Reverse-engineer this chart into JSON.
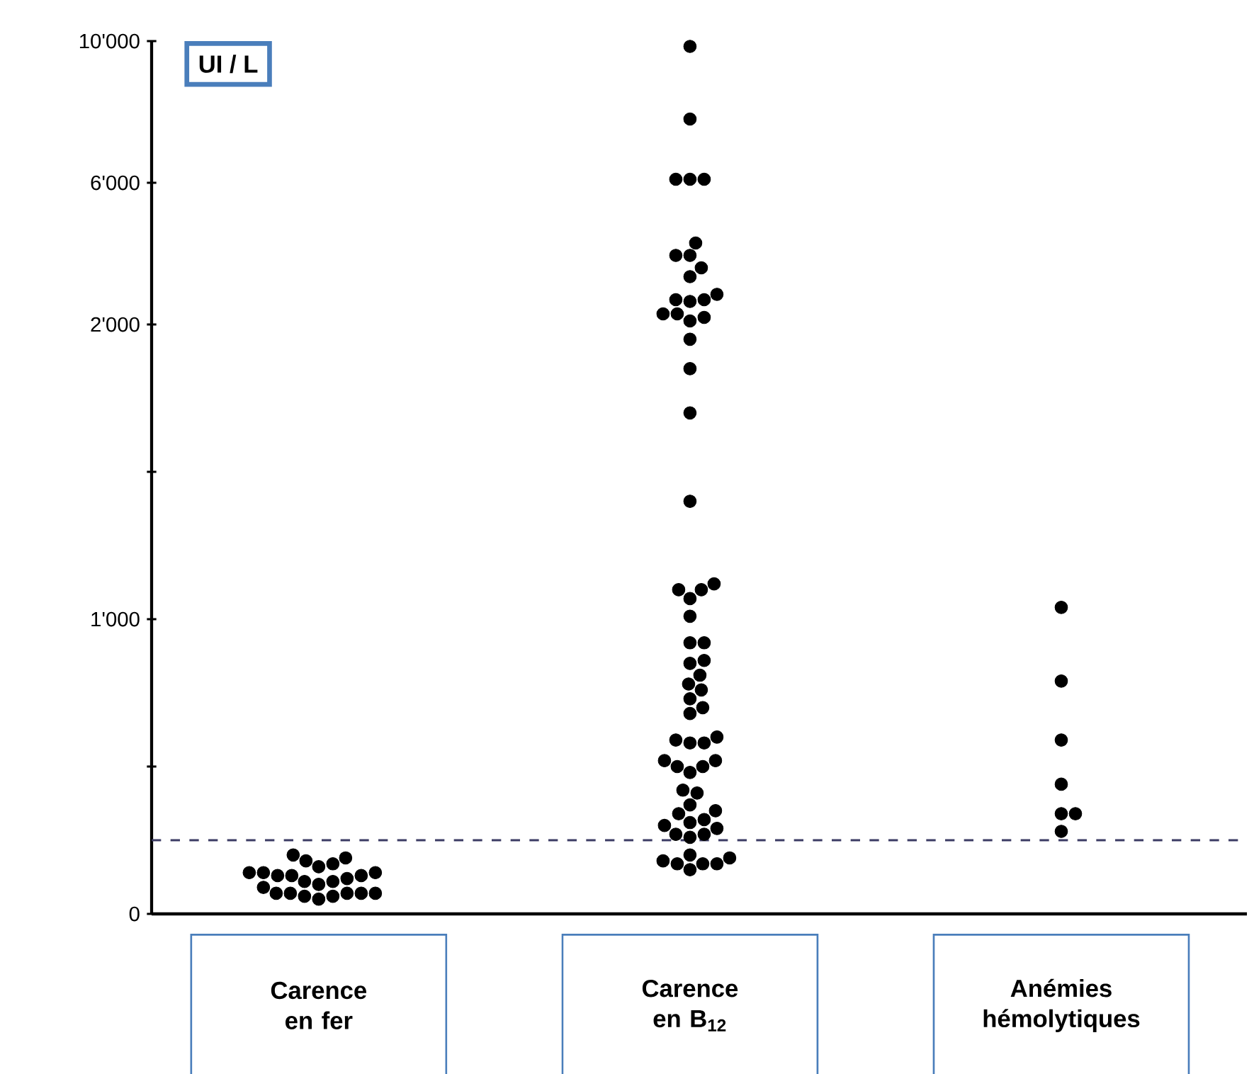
{
  "chart_data": [
    {
      "type": "scatter",
      "ylabel": "UI / L",
      "categories": [
        "Carence en fer",
        "Carence en B$_{12}$",
        "Anémies hémolytiques"
      ],
      "ylim": [
        2000,
        10000
      ],
      "yticks": [
        {
          "value": 6000,
          "label": "6'000"
        },
        {
          "value": 10000,
          "label": "10'000"
        }
      ],
      "tick_labels": "y",
      "marker": "circle",
      "series": [
        {
          "color": "#000000",
          "x": [
            "Carence en B$_{12}$",
            "Carence en B$_{12}$",
            "Carence en B$_{12}$",
            "Carence en B$_{12}$",
            "Carence en B$_{12}$",
            "Carence en B$_{12}$",
            "Carence en B$_{12}$",
            "Carence en B$_{12}$",
            "Carence en B$_{12}$",
            "Carence en B$_{12}$",
            "Carence en B$_{12}$",
            "Carence en B$_{12}$",
            "Carence en B$_{12}$",
            "Carence en B$_{12}$",
            "Carence en B$_{12}$",
            "Carence en B$_{12}$",
            "Carence en B$_{12}$",
            "Carence en B$_{12}$"
          ],
          "values": [
            9850,
            7800,
            6100,
            6100,
            6100,
            4300,
            3950,
            3950,
            3600,
            3350,
            2700,
            2700,
            2650,
            2850,
            2300,
            2200,
            2100,
            2300
          ]
        }
      ]
    },
    {
      "type": "scatter",
      "categories": [
        "Carence en fer",
        "Carence en B$_{12}$",
        "Anémies hémolytiques"
      ],
      "ylim": [
        0,
        2000
      ],
      "yticks": [
        0,
        {
          "value": 500,
          "label": null
        },
        {
          "value": 1000,
          "label": "1'000"
        },
        {
          "value": 1500,
          "label": null
        },
        {
          "value": 2000,
          "label": "2'000"
        }
      ],
      "marker": "circle",
      "ref_lines": [
        {
          "axis": "y",
          "value": 250,
          "color": "#3c3c64",
          "line_style": "dashed"
        }
      ],
      "series": [
        {
          "color": "#000000",
          "x": [
            "Carence en fer",
            "Carence en fer",
            "Carence en fer",
            "Carence en fer",
            "Carence en fer",
            "Carence en fer",
            "Carence en fer",
            "Carence en fer",
            "Carence en fer",
            "Carence en fer",
            "Carence en fer",
            "Carence en fer",
            "Carence en fer",
            "Carence en fer",
            "Carence en fer",
            "Carence en fer",
            "Carence en fer",
            "Carence en fer",
            "Carence en fer",
            "Carence en fer",
            "Carence en fer",
            "Carence en fer",
            "Carence en fer",
            "Carence en fer",
            "Carence en B$_{12}$",
            "Carence en B$_{12}$",
            "Carence en B$_{12}$",
            "Carence en B$_{12}$",
            "Carence en B$_{12}$",
            "Carence en B$_{12}$",
            "Carence en B$_{12}$",
            "Carence en B$_{12}$",
            "Carence en B$_{12}$",
            "Carence en B$_{12}$",
            "Carence en B$_{12}$",
            "Carence en B$_{12}$",
            "Carence en B$_{12}$",
            "Carence en B$_{12}$",
            "Carence en B$_{12}$",
            "Carence en B$_{12}$",
            "Carence en B$_{12}$",
            "Carence en B$_{12}$",
            "Carence en B$_{12}$",
            "Carence en B$_{12}$",
            "Carence en B$_{12}$",
            "Carence en B$_{12}$",
            "Carence en B$_{12}$",
            "Carence en B$_{12}$",
            "Carence en B$_{12}$",
            "Carence en B$_{12}$",
            "Carence en B$_{12}$",
            "Carence en B$_{12}$",
            "Carence en B$_{12}$",
            "Carence en B$_{12}$",
            "Carence en B$_{12}$",
            "Carence en B$_{12}$",
            "Carence en B$_{12}$",
            "Carence en B$_{12}$",
            "Carence en B$_{12}$",
            "Carence en B$_{12}$",
            "Carence en B$_{12}$",
            "Carence en B$_{12}$",
            "Carence en B$_{12}$",
            "Carence en B$_{12}$",
            "Carence en B$_{12}$",
            "Carence en B$_{12}$",
            "Carence en B$_{12}$",
            "Carence en B$_{12}$",
            "Carence en B$_{12}$",
            "Carence en B$_{12}$",
            "Carence en B$_{12}$",
            "Anémies hémolytiques",
            "Anémies hémolytiques",
            "Anémies hémolytiques",
            "Anémies hémolytiques",
            "Anémies hémolytiques",
            "Anémies hémolytiques",
            "Anémies hémolytiques"
          ],
          "values": [
            100,
            140,
            70,
            140,
            70,
            180,
            130,
            60,
            110,
            50,
            200,
            130,
            90,
            170,
            70,
            120,
            190,
            70,
            130,
            70,
            160,
            110,
            60,
            140,
            1950,
            1850,
            1700,
            1400,
            1100,
            1100,
            1120,
            1070,
            1010,
            920,
            920,
            860,
            850,
            810,
            760,
            780,
            730,
            700,
            680,
            580,
            580,
            590,
            600,
            520,
            500,
            500,
            520,
            480,
            410,
            420,
            370,
            350,
            300,
            310,
            340,
            320,
            270,
            270,
            260,
            290,
            200,
            170,
            190,
            180,
            170,
            170,
            150,
            1040,
            790,
            590,
            440,
            340,
            340,
            280
          ]
        }
      ]
    }
  ]
}
